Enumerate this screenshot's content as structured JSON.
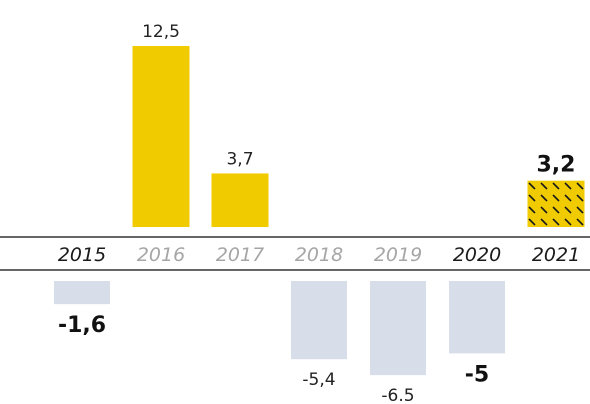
{
  "chart_data": {
    "type": "bar",
    "categories": [
      "2015",
      "2016",
      "2017",
      "2018",
      "2019",
      "2020",
      "2021"
    ],
    "values": [
      -1.6,
      12.5,
      3.7,
      -5.4,
      -6.5,
      -5,
      3.2
    ],
    "value_labels": [
      "-1,6",
      "12,5",
      "3,7",
      "-5,4",
      "-6.5",
      "-5",
      "3,2"
    ],
    "highlighted": [
      true,
      false,
      false,
      false,
      false,
      true,
      true
    ],
    "hatched": [
      false,
      false,
      false,
      false,
      false,
      false,
      true
    ],
    "title": "",
    "xlabel": "",
    "ylabel": "",
    "grid": false,
    "colors": {
      "positive": "#f0cb00",
      "negative": "#d7dee9",
      "label_highlight": "#1a1a1a",
      "label_muted": "#a6a6a6",
      "axis_line": "#333333"
    }
  }
}
